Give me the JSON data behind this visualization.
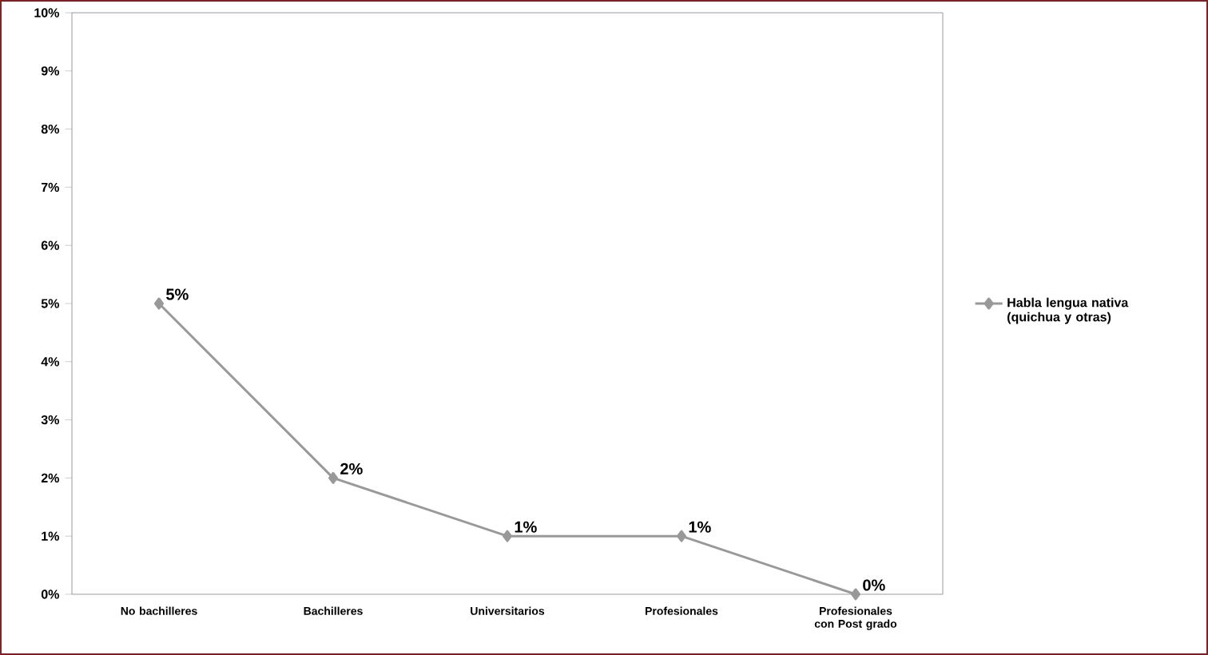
{
  "chart_data": {
    "type": "line",
    "categories": [
      "No bachilleres",
      "Bachilleres",
      "Universitarios",
      "Profesionales",
      "Profesionales con Post grado"
    ],
    "series": [
      {
        "name": "Habla lengua nativa (quichua y otras)",
        "color": "#999999",
        "values": [
          5,
          2,
          1,
          1,
          0
        ],
        "value_labels": [
          "5%",
          "2%",
          "1%",
          "1%",
          "0%"
        ]
      }
    ],
    "ylim": [
      0,
      10
    ],
    "yticks": [
      {
        "value": 0,
        "label": "0%"
      },
      {
        "value": 1,
        "label": "1%"
      },
      {
        "value": 2,
        "label": "2%"
      },
      {
        "value": 3,
        "label": "3%"
      },
      {
        "value": 4,
        "label": "4%"
      },
      {
        "value": 5,
        "label": "5%"
      },
      {
        "value": 6,
        "label": "6%"
      },
      {
        "value": 7,
        "label": "7%"
      },
      {
        "value": 8,
        "label": "8%"
      },
      {
        "value": 9,
        "label": "9%"
      },
      {
        "value": 10,
        "label": "10%"
      }
    ],
    "grid": false,
    "legend": "right",
    "marker": "diamond",
    "line_style": "solid"
  }
}
